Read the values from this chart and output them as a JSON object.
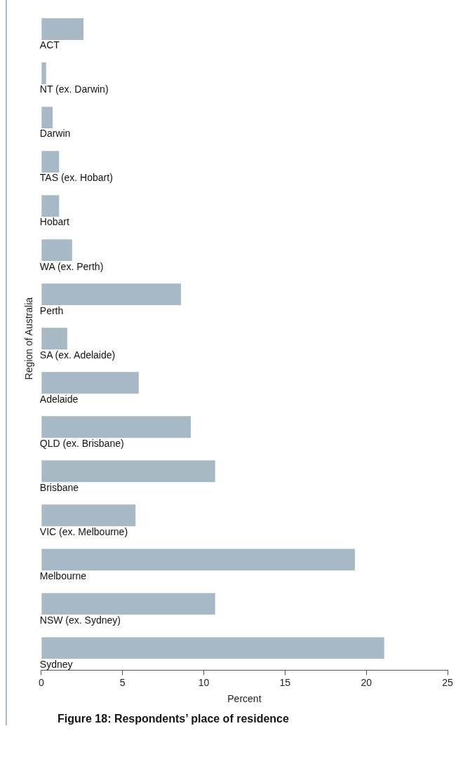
{
  "chart_data": {
    "type": "bar",
    "orientation": "horizontal",
    "title": "Figure 18: Respondents’ place of residence",
    "xlabel": "Percent",
    "ylabel": "Region of Australia",
    "categories": [
      "ACT",
      "NT (ex. Darwin)",
      "Darwin",
      "TAS (ex. Hobart)",
      "Hobart",
      "WA (ex. Perth)",
      "Perth",
      "SA (ex. Adelaide)",
      "Adelaide",
      "QLD (ex. Brisbane)",
      "Brisbane",
      "VIC (ex. Melbourne)",
      "Melbourne",
      "NSW (ex. Sydney)",
      "Sydney"
    ],
    "values": [
      2.6,
      0.3,
      0.7,
      1.1,
      1.1,
      1.9,
      8.6,
      1.6,
      6.0,
      9.2,
      10.7,
      5.8,
      19.3,
      10.7,
      21.1
    ],
    "color": "#a6b9c4",
    "xlim": [
      0,
      25
    ],
    "xticks": [
      0,
      5,
      10,
      15,
      20,
      25
    ],
    "grid": false,
    "legend": false
  }
}
